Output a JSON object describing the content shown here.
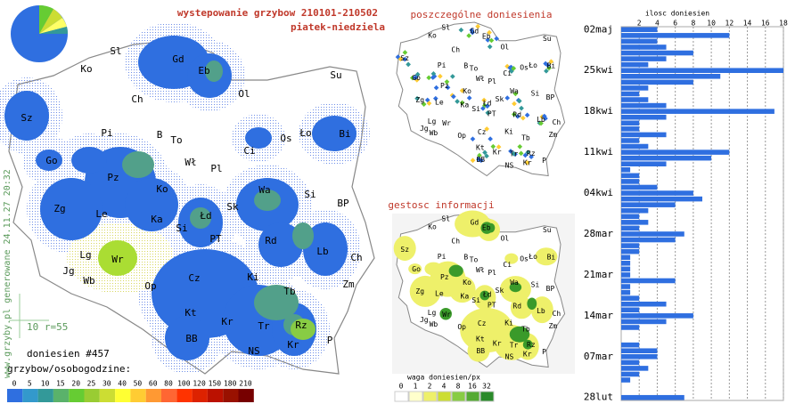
{
  "header": {
    "title": "wystepowanie grzybow 210101-210502",
    "subtitle": "piatek-niedziela"
  },
  "main_map": {
    "labels": [
      "Sl",
      "Gd",
      "Eb",
      "Ko",
      "Su",
      "Ol",
      "Ch",
      "Sz",
      "Pi",
      "B",
      "To",
      "Ło",
      "Bi",
      "Go",
      "Wł",
      "Pl",
      "Ci",
      "Os",
      "Pz",
      "Ko",
      "Wa",
      "Si",
      "Zg",
      "Le",
      "Ka",
      "Łd",
      "Sk",
      "BP",
      "Si",
      "PT",
      "Lg",
      "Wr",
      "Rd",
      "Lb",
      "Jg",
      "Wb",
      "Ch",
      "Op",
      "Cz",
      "Ki",
      "Zm",
      "Tb",
      "Kt",
      "Kr",
      "Tr",
      "Rz",
      "BB",
      "Kr",
      "NS",
      "P"
    ],
    "count": "doniesien #457",
    "scale_note": "10 r=55",
    "footer": "www.grzyby.pl generowane 24.11.27 20:32",
    "legend": {
      "title": "grzybow/osobogodzine:",
      "values": [
        0,
        5,
        10,
        15,
        20,
        25,
        30,
        40,
        50,
        60,
        80,
        100,
        120,
        150,
        180,
        210
      ]
    }
  },
  "reports_map": {
    "title": "poszczególne doniesienia"
  },
  "density_map": {
    "title": "gestosc informacji",
    "legend": {
      "title": "waga doniesien/px",
      "values": [
        0,
        1,
        2,
        4,
        8,
        16,
        32
      ]
    }
  },
  "chart_data": {
    "type": "bar",
    "orientation": "horizontal",
    "xlabel": "ilosc doniesien",
    "categories": [
      "02maj",
      null,
      null,
      null,
      null,
      null,
      null,
      "25kwi",
      null,
      null,
      null,
      null,
      null,
      null,
      "18kwi",
      null,
      null,
      null,
      null,
      null,
      null,
      "11kwi",
      null,
      null,
      null,
      null,
      null,
      null,
      "04kwi",
      null,
      null,
      null,
      null,
      null,
      null,
      "28mar",
      null,
      null,
      null,
      null,
      null,
      null,
      "21mar",
      null,
      null,
      null,
      null,
      null,
      null,
      "14mar",
      null,
      null,
      null,
      null,
      null,
      null,
      "07mar",
      null,
      null,
      null,
      null,
      null,
      null,
      "28lut"
    ],
    "values": [
      4,
      12,
      4,
      5,
      8,
      5,
      3,
      18,
      11,
      8,
      3,
      2,
      3,
      5,
      17,
      5,
      2,
      2,
      5,
      2,
      3,
      12,
      10,
      5,
      1,
      2,
      2,
      4,
      8,
      9,
      6,
      3,
      2,
      3,
      2,
      7,
      6,
      2,
      2,
      1,
      1,
      1,
      1,
      6,
      1,
      1,
      2,
      5,
      2,
      8,
      5,
      2,
      0,
      0,
      2,
      4,
      4,
      2,
      3,
      2,
      1,
      0,
      0,
      7
    ],
    "color": "#2f6fe0",
    "xlim": [
      0,
      18
    ],
    "xticks": [
      2,
      4,
      6,
      8,
      10,
      12,
      14,
      16,
      18
    ],
    "grid": true
  }
}
